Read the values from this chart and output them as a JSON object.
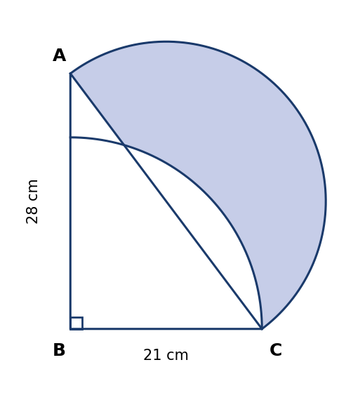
{
  "AB": 28,
  "BC": 21,
  "AC": 35,
  "B": [
    0,
    0
  ],
  "C": [
    21,
    0
  ],
  "A": [
    0,
    28
  ],
  "fill_color": "#c5cce8",
  "fill_alpha": 0.85,
  "line_color": "#1a3a6b",
  "line_width": 2.2,
  "label_A": "A",
  "label_B": "B",
  "label_C": "C",
  "label_AB": "28 cm",
  "label_BC": "21 cm",
  "font_size_labels": 18,
  "font_size_dim": 15
}
